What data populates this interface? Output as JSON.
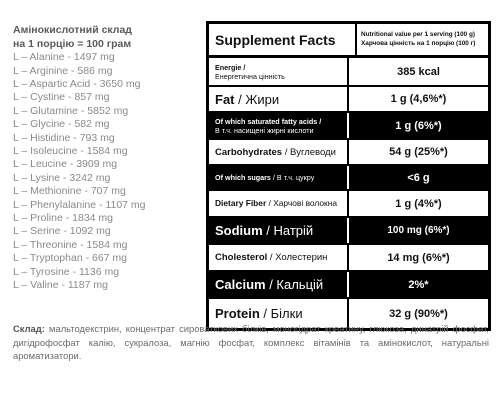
{
  "amino": {
    "title_line1": "Амінокислотний склад",
    "title_line2": "на 1 порцію = 100 грам",
    "items": [
      "L – Alanine - 1497 mg",
      "L – Arginine - 586 mg",
      "L – Aspartic Acid - 3650 mg",
      "L – Cystine - 857 mg",
      "L – Glutamine - 5852 mg",
      "L – Glycine - 582 mg",
      "L – Histidine - 793 mg",
      "L – Isoleucine - 1584 mg",
      "L – Leucine - 3909 mg",
      "L – Lysine - 3242 mg",
      "L – Methionine - 707 mg",
      "L – Phenylalanine - 1107 mg",
      "L – Proline - 1834 mg",
      "L – Serine - 1092 mg",
      "L – Threonine - 1584 mg",
      "L – Tryptophan - 667 mg",
      "L – Tyrosine - 1136 mg",
      "L – Valine - 1187 mg"
    ]
  },
  "facts": {
    "title": "Supplement Facts",
    "note_line1": "Nutritional value per 1 serving (100 g)",
    "note_line2": "Харчова цінність на 1 порцію (100 г)",
    "rows": [
      {
        "label_en": "Energie /",
        "label_ua": "Енергетична цінність",
        "value": "385 kcal"
      },
      {
        "label_en": "Fat",
        "label_ua": "Жири",
        "value": "1 g (4,6%*)"
      },
      {
        "label_en": "Of which saturated fatty acids /",
        "label_ua": "В т.ч. насищені жирні кислоти",
        "value": "1 g (6%*)"
      },
      {
        "label_en": "Carbohydrates",
        "label_ua": "Вуглеводи",
        "value": "54 g (25%*)"
      },
      {
        "label_en": "Of which sugars",
        "label_ua": "В т.ч. цукру",
        "value": "<6 g"
      },
      {
        "label_en": "Dietary Fiber",
        "label_ua": "Харчові волокна",
        "value": "1 g (4%*)"
      },
      {
        "label_en": "Sodium",
        "label_ua": "Натрій",
        "value": "100 mg (6%*)"
      },
      {
        "label_en": "Cholesterol",
        "label_ua": "Холестерин",
        "value": "14 mg (6%*)"
      },
      {
        "label_en": "Calcium",
        "label_ua": "Кальцій",
        "value": "2%*"
      },
      {
        "label_en": "Protein",
        "label_ua": "Білки",
        "value": "32 g (90%*)"
      }
    ]
  },
  "composition": {
    "label": "Склад:",
    "text": "мальтодекстрин, концентрат сироваткових білків, моногідрат креатину, глюкоза, динатрій фосфат, дигідрофосфат калію, сукралоза, магнію фосфат, комплекс вітамінів та амінокислот, натуральні ароматизатори."
  }
}
